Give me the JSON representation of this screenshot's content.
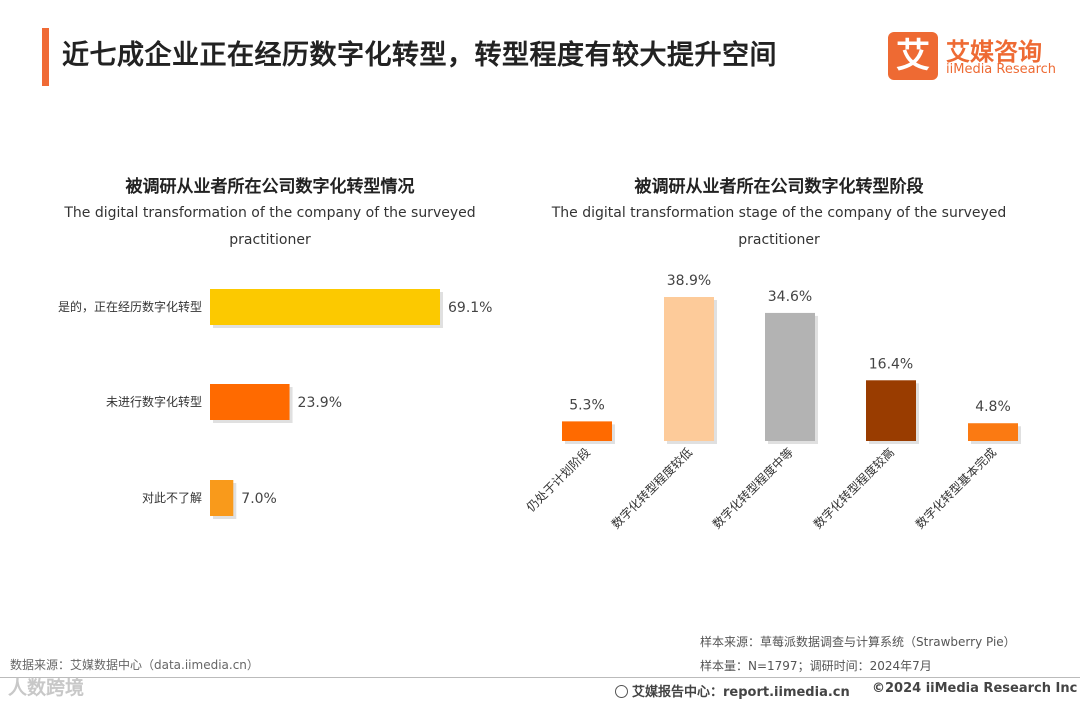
{
  "header": {
    "title": "近七成企业正在经历数字化转型，转型程度有较大提升空间",
    "logo_mark": "艾",
    "logo_cn": "艾媒咨询",
    "logo_en": "iiMedia Research"
  },
  "colors": {
    "accent": "#f06a35",
    "yellow": "#fcc900",
    "orange": "#ff6a00",
    "light_orange": "#f99a1b",
    "peach": "#fdcb9a",
    "gray": "#b3b3b3",
    "brown": "#993c00",
    "bright_orange": "#fb7a12"
  },
  "chart_data": [
    {
      "type": "bar",
      "orientation": "horizontal",
      "title": "被调研从业者所在公司数字化转型情况",
      "subtitle_line1": "The digital transformation of the company of the surveyed",
      "subtitle_line2": "practitioner",
      "categories": [
        "是的，正在经历数字化转型",
        "未进行数字化转型",
        "对此不了解"
      ],
      "values": [
        69.1,
        23.9,
        7.0
      ],
      "labels": [
        "69.1%",
        "23.9%",
        "7.0%"
      ],
      "xlim": [
        0,
        100
      ]
    },
    {
      "type": "bar",
      "orientation": "vertical",
      "title": "被调研从业者所在公司数字化转型阶段",
      "subtitle_line1": "The digital transformation stage of the company of the surveyed",
      "subtitle_line2": "practitioner",
      "categories": [
        "仍处于计划阶段",
        "数字化转型程度较低",
        "数字化转型程度中等",
        "数字化转型程度较高",
        "数字化转型基本完成"
      ],
      "values": [
        5.3,
        38.9,
        34.6,
        16.4,
        4.8
      ],
      "labels": [
        "5.3%",
        "38.9%",
        "34.6%",
        "16.4%",
        "4.8%"
      ],
      "ylim": [
        0,
        40
      ]
    }
  ],
  "footer": {
    "source_left": "数据来源：艾媒数据中心（data.iimedia.cn）",
    "sample_source": "样本来源：草莓派数据调查与计算系统（Strawberry Pie）",
    "sample_info": "样本量：N=1797；调研时间：2024年7月",
    "report_center": "艾媒报告中心：report.iimedia.cn",
    "copyright": "©2024  iiMedia Research Inc",
    "watermark": "人数跨境"
  }
}
